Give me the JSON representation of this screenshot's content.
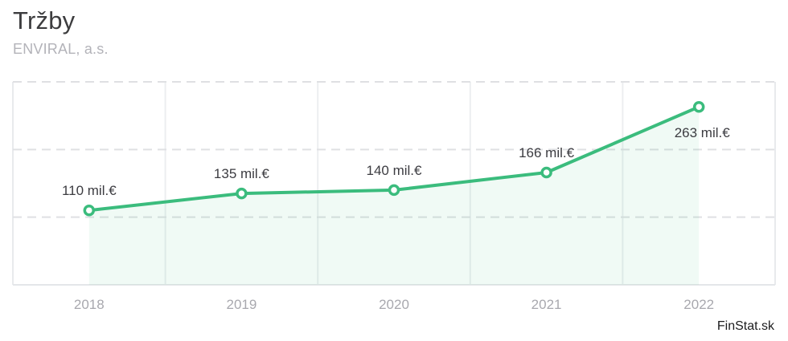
{
  "page": {
    "title": "Tržby",
    "subtitle": "ENVIRAL, a.s.",
    "watermark": "FinStat.sk"
  },
  "colors": {
    "line": "#3bbc7d",
    "marker_fill": "#ffffff",
    "area_fill": "rgba(59, 188, 125, 0.08)",
    "grid_dashed": "#dfe0e3",
    "grid_vertical": "#eceef0",
    "plot_border": "#e8eaed",
    "axis_bottom": "#e4e6e9",
    "title_text": "#3d3d3f",
    "subtitle_text": "#b3b3b9",
    "point_label_text": "#3c3c41",
    "tick_text": "#a8a8ae",
    "watermark_text": "#1c1c1e"
  },
  "chart_data": {
    "type": "line",
    "title": "Tržby",
    "subtitle": "ENVIRAL, a.s.",
    "categories": [
      "2018",
      "2019",
      "2020",
      "2021",
      "2022"
    ],
    "series": [
      {
        "name": "Tržby",
        "values": [
          110,
          135,
          140,
          166,
          263
        ]
      }
    ],
    "point_labels": [
      "110 mil.€",
      "135 mil.€",
      "140 mil.€",
      "166 mil.€",
      "263 mil.€"
    ],
    "label_placement": [
      "above",
      "above",
      "above",
      "above",
      "below"
    ],
    "unit": "mil.€",
    "xlabel": "",
    "ylabel": "",
    "ylim": [
      0,
      300
    ],
    "y_gridlines": [
      100,
      200,
      300
    ],
    "y_tick_labels_shown": false,
    "grid": "horizontal dashed, vertical solid at band boundaries",
    "legend_position": "none",
    "marker_style": "open-circle",
    "area_under_line": true
  }
}
